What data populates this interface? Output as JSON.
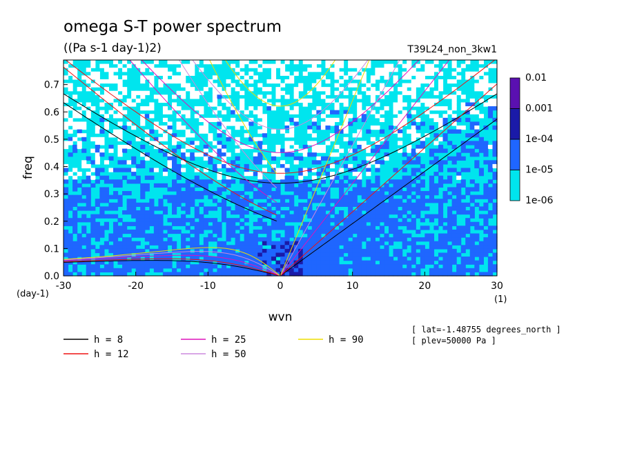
{
  "chart_data": {
    "type": "heatmap",
    "title": "omega S-T power spectrum",
    "subtitle": "((Pa s-1 day-1)2)",
    "run_label": "T39L24_non_3kw1",
    "xlabel": "wvn",
    "ylabel": "freq",
    "x_unit": "(1)",
    "y_unit": "(day-1)",
    "xlim": [
      -30,
      30
    ],
    "ylim": [
      0.0,
      0.79
    ],
    "x_ticks": [
      "-30",
      "-20",
      "-10",
      "0",
      "10",
      "20",
      "30"
    ],
    "x_tick_values": [
      -30,
      -20,
      -10,
      0,
      10,
      20,
      30
    ],
    "y_ticks": [
      "0.0",
      "0.1",
      "0.2",
      "0.3",
      "0.4",
      "0.5",
      "0.6",
      "0.7"
    ],
    "y_tick_values": [
      0.0,
      0.1,
      0.2,
      0.3,
      0.4,
      0.5,
      0.6,
      0.7
    ],
    "colorbar": {
      "levels": [
        "0.01",
        "0.001",
        "1e-04",
        "1e-05",
        "1e-06"
      ],
      "colors": [
        "#5a10b0",
        "#1a1aa8",
        "#1f66ff",
        "#00e5ee"
      ]
    },
    "dispersion_curves": [
      {
        "name": "h =  8",
        "h": 8,
        "color": "#000000"
      },
      {
        "name": "h = 12",
        "h": 12,
        "color": "#ee1111"
      },
      {
        "name": "h = 25",
        "h": 25,
        "color": "#dd11bb"
      },
      {
        "name": "h = 50",
        "h": 50,
        "color": "#cc88dd"
      },
      {
        "name": "h = 90",
        "h": 90,
        "color": "#eedd00"
      }
    ],
    "annotations": [
      "[ lat=-1.48755 degrees_north ]",
      "[ plev=50000 Pa ]"
    ]
  }
}
